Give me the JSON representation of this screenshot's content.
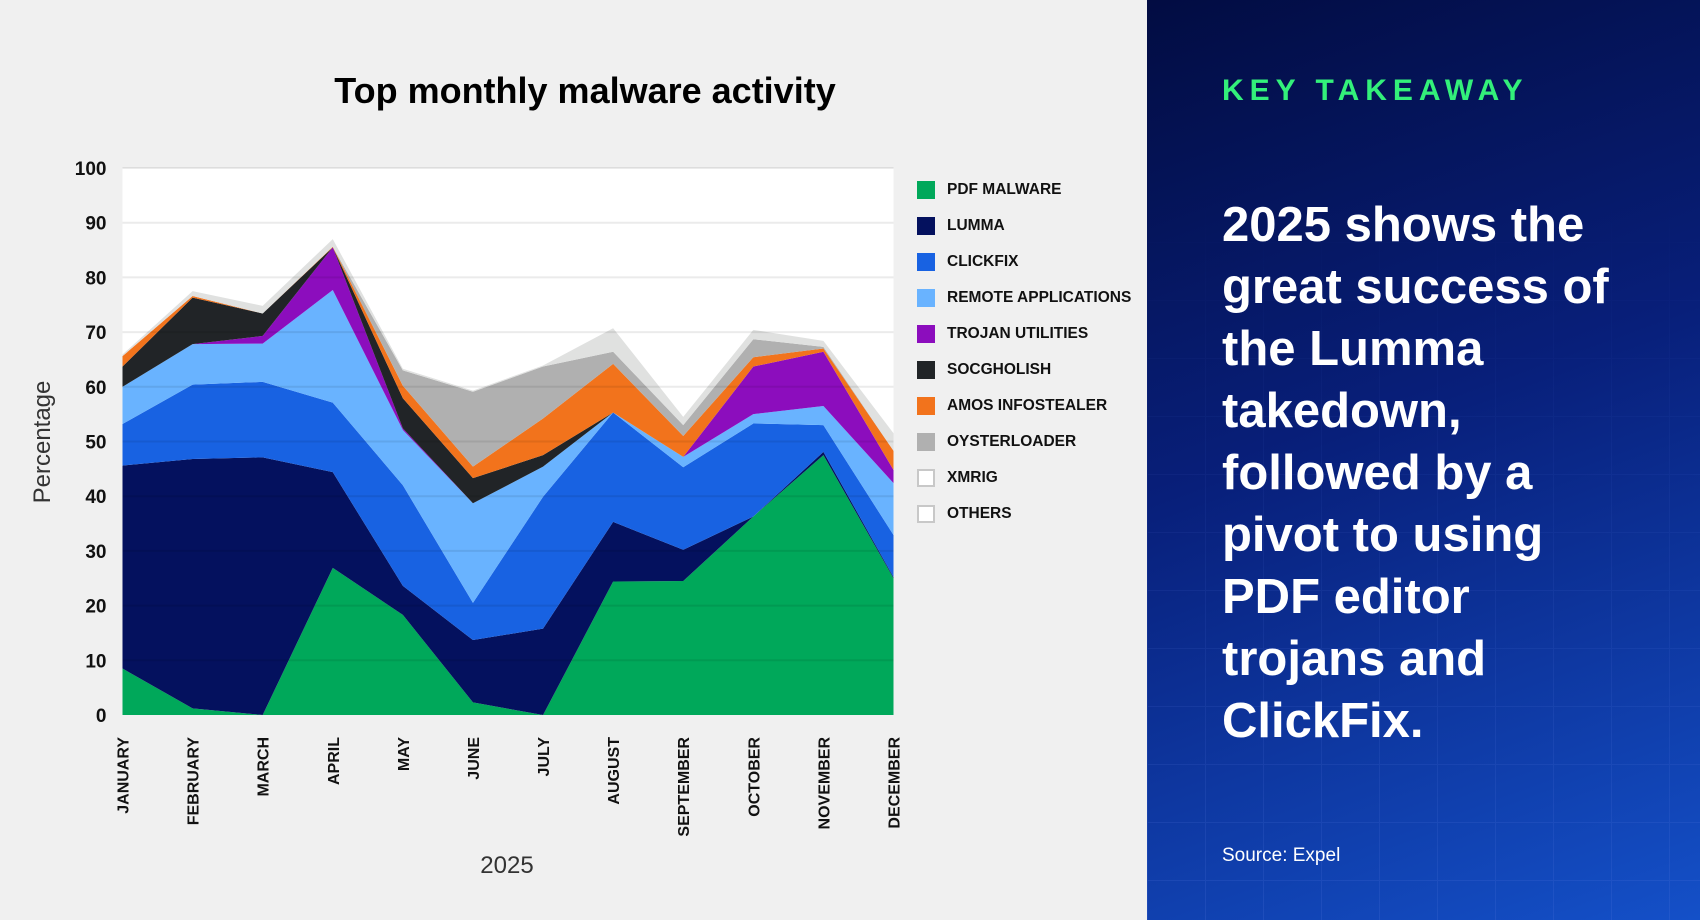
{
  "chart_data": {
    "type": "area",
    "stacked": true,
    "title": "Top monthly malware activity",
    "xlabel": "2025",
    "ylabel": "Percentage",
    "ylim": [
      0,
      100
    ],
    "yticks": [
      0,
      10,
      20,
      30,
      40,
      50,
      60,
      70,
      80,
      90,
      100
    ],
    "grid": true,
    "legend_position": "right",
    "categories": [
      "JANUARY",
      "FEBRUARY",
      "MARCH",
      "APRIL",
      "MAY",
      "JUNE",
      "JULY",
      "AUGUST",
      "SEPTEMBER",
      "OCTOBER",
      "NOVEMBER",
      "DECEMBER"
    ],
    "series": [
      {
        "name": "PDF MALWARE",
        "color": "#00a85a",
        "values": [
          8.5,
          1.2,
          0,
          26.9,
          18.3,
          2.3,
          0,
          24.4,
          24.5,
          36.3,
          47.5,
          25
        ]
      },
      {
        "name": "LUMMA",
        "color": "#04115e",
        "values": [
          37.1,
          45.6,
          47.1,
          17.5,
          5.3,
          11.4,
          15.8,
          10.9,
          5.7,
          0,
          0.6,
          0.2
        ]
      },
      {
        "name": "CLICKFIX",
        "color": "#1862e2",
        "values": [
          7.6,
          13.6,
          13.8,
          12.7,
          18.4,
          6.8,
          24.1,
          20,
          15.1,
          17,
          4.9,
          7.7
        ]
      },
      {
        "name": "REMOTE APPLICATIONS",
        "color": "#69b3ff",
        "values": [
          6.8,
          7.4,
          7,
          20.6,
          10.1,
          18.2,
          5.5,
          0,
          1.9,
          1.7,
          3.5,
          9.5
        ]
      },
      {
        "name": "TROJAN UTILITIES",
        "color": "#8c0dbd",
        "values": [
          0,
          0,
          1.4,
          7.8,
          0.3,
          0,
          0,
          0,
          0,
          8.7,
          9.9,
          2.4
        ]
      },
      {
        "name": "SOCGHOLISH",
        "color": "#212427",
        "values": [
          3.7,
          8.5,
          4.1,
          0,
          5.5,
          4.6,
          2.1,
          0,
          0,
          0,
          0,
          0
        ]
      },
      {
        "name": "AMOS INFOSTEALER",
        "color": "#f2731c",
        "values": [
          1.9,
          0.3,
          0,
          0.1,
          2.3,
          2.1,
          6.7,
          8.9,
          3.8,
          1.7,
          0.6,
          3.5
        ]
      },
      {
        "name": "OYSTERLOADER",
        "color": "#b0b0b0",
        "values": [
          0,
          0,
          0,
          0,
          2.8,
          13.7,
          9.5,
          2.2,
          2,
          3.3,
          0.3,
          0
        ]
      },
      {
        "name": "XMRIG",
        "color": "#ffffff",
        "values": [
          0,
          0,
          0,
          0,
          0,
          0,
          0,
          0,
          0,
          0,
          0,
          0
        ]
      },
      {
        "name": "OTHERS",
        "color": "#e0e1e0",
        "values": [
          0.3,
          0.9,
          1.4,
          1.4,
          0.3,
          0.2,
          0.2,
          4.3,
          1.5,
          1.7,
          1.1,
          3.2
        ]
      }
    ]
  },
  "panel": {
    "heading": "KEY TAKEAWAY",
    "message_lines": [
      "2025 shows the",
      "great success of",
      "the Lumma",
      "takedown,",
      "followed by a",
      "pivot to using",
      "PDF editor",
      "trojans and",
      "ClickFix."
    ],
    "source": "Source: Expel",
    "heading_color": "#33f07a"
  }
}
